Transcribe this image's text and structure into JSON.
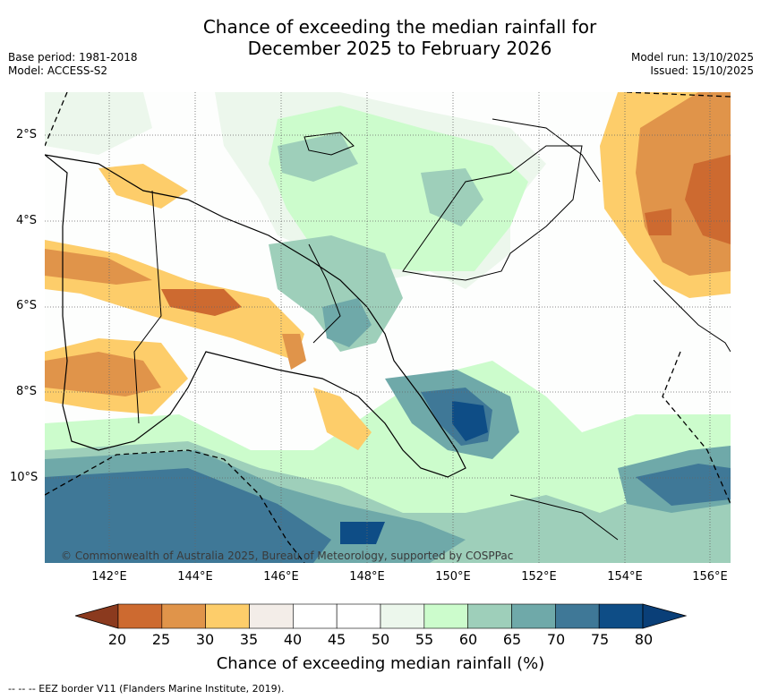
{
  "title": {
    "line1": "Chance of exceeding the median rainfall for",
    "line2": "December 2025 to February 2026"
  },
  "meta": {
    "base_period": "Base period: 1981-2018",
    "model": "Model: ACCESS-S2",
    "model_run": "Model run: 13/10/2025",
    "issued": "Issued: 15/10/2025"
  },
  "lat_labels": [
    "2°S",
    "4°S",
    "6°S",
    "8°S",
    "10°S"
  ],
  "lon_labels": [
    "142°E",
    "144°E",
    "146°E",
    "148°E",
    "150°E",
    "152°E",
    "154°E",
    "156°E"
  ],
  "copyright": "© Commonwealth of Australia 2025, Bureau of Meteorology, supported by COSPPac",
  "colorbar": {
    "ticks": [
      "20",
      "25",
      "30",
      "35",
      "40",
      "45",
      "50",
      "55",
      "60",
      "65",
      "70",
      "75",
      "80"
    ],
    "colors": [
      "#b04a26",
      "#cd6a30",
      "#e0944a",
      "#fdcd6a",
      "#f3ede8",
      "#ffffff",
      "#ffffff",
      "#ecf7ec",
      "#ccfccc",
      "#9ecfba",
      "#6fa9a9",
      "#3f7897",
      "#0e4d86"
    ],
    "label": "Chance of exceeding median rainfall (%)"
  },
  "footer": "-- -- -- EEZ border V11 (Flanders Marine Institute, 2019)."
}
